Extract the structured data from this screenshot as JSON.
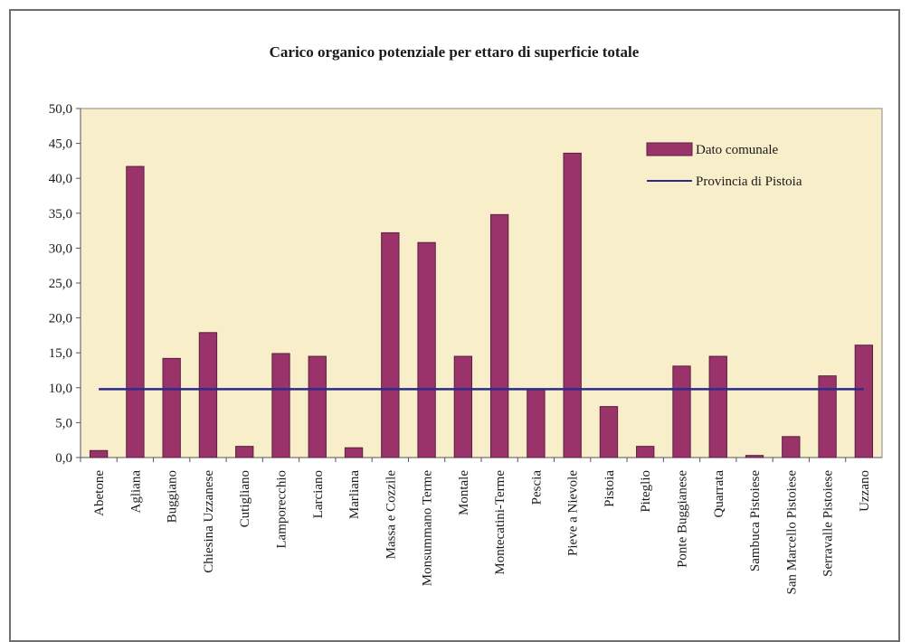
{
  "chart_data": {
    "type": "bar",
    "title": "Carico organico potenziale per ettaro di superficie totale",
    "xlabel": "",
    "ylabel": "",
    "ylim": [
      0,
      50
    ],
    "yticks": [
      "0,0",
      "5,0",
      "10,0",
      "15,0",
      "20,0",
      "25,0",
      "30,0",
      "35,0",
      "40,0",
      "45,0",
      "50,0"
    ],
    "grid": false,
    "legend_position": "top-right",
    "colors": {
      "plot_background": "#f8eec9",
      "bar": "#99336a",
      "bar_outline": "#5a1f3f",
      "reference_line": "#2b2b8c"
    },
    "categories": [
      "Abetone",
      "Agliana",
      "Buggiano",
      "Chiesina Uzzanese",
      "Cutigliano",
      "Lamporecchio",
      "Larciano",
      "Marliana",
      "Massa e Cozzile",
      "Monsummano Terme",
      "Montale",
      "Montecatini-Terme",
      "Pescia",
      "Pieve a Nievole",
      "Pistoia",
      "Piteglio",
      "Ponte Buggianese",
      "Quarrata",
      "Sambuca Pistoiese",
      "San Marcello Pistoiese",
      "Serravalle Pistoiese",
      "Uzzano"
    ],
    "series": [
      {
        "name": "Dato comunale",
        "type": "bar",
        "values": [
          1.0,
          41.7,
          14.2,
          17.9,
          1.6,
          14.9,
          14.5,
          1.4,
          32.2,
          30.8,
          14.5,
          34.8,
          9.8,
          43.6,
          7.3,
          1.6,
          13.1,
          14.5,
          0.3,
          3.0,
          11.7,
          16.1
        ]
      },
      {
        "name": "Provincia di Pistoia",
        "type": "line",
        "value": 9.8
      }
    ]
  }
}
